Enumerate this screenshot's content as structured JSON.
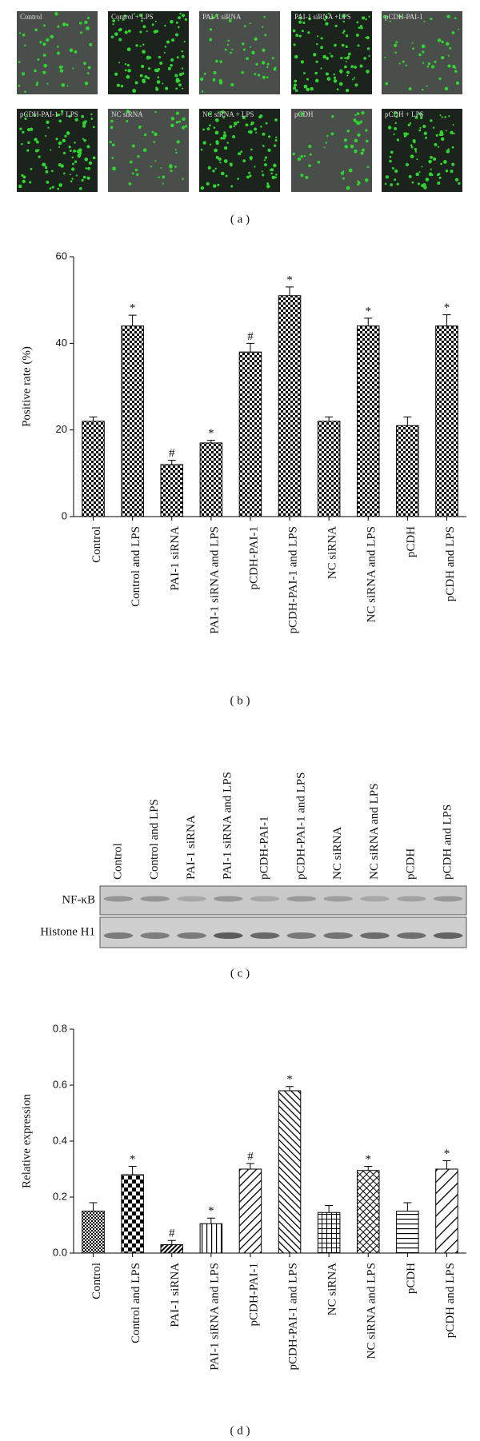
{
  "panel_labels": [
    "( a )",
    "( b )",
    "( c )",
    "( d )"
  ],
  "figure_a": {
    "images": [
      "Control",
      "Control + LPS",
      "PAI-1 siRNA",
      "PAI-1 siRNA +LPS",
      "pCDH-PAI-1",
      "pCDH-PAI-1 + LPS",
      "NC siRNA",
      "NC siRNA + LPS",
      "pCDH",
      "pCDH + LPS"
    ]
  },
  "figure_c": {
    "lanes": [
      "Control",
      "Control and LPS",
      "PAI-1 siRNA",
      "PAI-1 siRNA and LPS",
      "pCDH-PAI-1",
      "pCDH-PAI-1 and LPS",
      "NC siRNA",
      "NC siRNA and LPS",
      "pCDH",
      "pCDH and LPS"
    ],
    "rows": [
      "NF-κB",
      "Histone H1"
    ]
  },
  "chart_data": [
    {
      "type": "bar",
      "y_label": "Positive rate (%)",
      "categories": [
        "Control",
        "Control and LPS",
        "PAI-1 siRNA",
        "PAI-1 siRNA and LPS",
        "pCDH-PAI-1",
        "pCDH-PAI-1 and LPS",
        "NC siRNA",
        "NC siRNA and LPS",
        "pCDH",
        "pCDH and LPS"
      ],
      "values": [
        22,
        44,
        12,
        17,
        38,
        51,
        22,
        44,
        21,
        44
      ],
      "errors": [
        1,
        2.5,
        1,
        0.6,
        2,
        2,
        1,
        1.8,
        2,
        2.6
      ],
      "annotations": [
        null,
        "*",
        "#",
        "*",
        "#",
        "*",
        null,
        "*",
        null,
        "*"
      ],
      "ylim": [
        0,
        60
      ],
      "yticks": [
        0,
        20,
        40,
        60
      ]
    },
    {
      "type": "bar",
      "y_label": "Relative expression",
      "categories": [
        "Control",
        "Control and LPS",
        "PAI-1 siRNA",
        "PAI-1 siRNA and LPS",
        "pCDH-PAI-1",
        "pCDH-PAI-1 and LPS",
        "NC siRNA",
        "NC siRNA and LPS",
        "pCDH",
        "pCDH and LPS"
      ],
      "values": [
        0.15,
        0.28,
        0.03,
        0.105,
        0.3,
        0.58,
        0.145,
        0.295,
        0.15,
        0.3
      ],
      "errors": [
        0.03,
        0.03,
        0.015,
        0.02,
        0.02,
        0.015,
        0.025,
        0.015,
        0.03,
        0.03
      ],
      "annotations": [
        null,
        "*",
        "#",
        "*",
        "#",
        "*",
        null,
        "*",
        null,
        "*"
      ],
      "ylim": [
        0,
        0.8
      ],
      "yticks": [
        {
          "value": 0,
          "label": "0.0"
        },
        0.2,
        0.4,
        0.6,
        0.8
      ]
    }
  ]
}
